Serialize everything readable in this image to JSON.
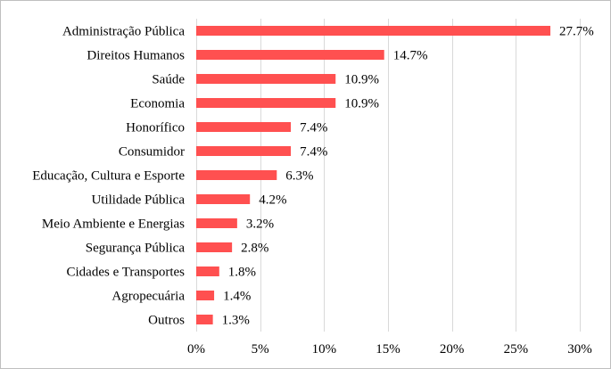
{
  "chart_data": {
    "type": "bar",
    "orientation": "horizontal",
    "categories": [
      "Administração Pública",
      "Direitos Humanos",
      "Saúde",
      "Economia",
      "Honorífico",
      "Consumidor",
      "Educação, Cultura e Esporte",
      "Utilidade Pública",
      "Meio Ambiente e Energias",
      "Segurança Pública",
      "Cidades e Transportes",
      "Agropecuária",
      "Outros"
    ],
    "values": [
      27.7,
      14.7,
      10.9,
      10.9,
      7.4,
      7.4,
      6.3,
      4.2,
      3.2,
      2.8,
      1.8,
      1.4,
      1.3
    ],
    "value_labels": [
      "27.7%",
      "14.7%",
      "10.9%",
      "10.9%",
      "7.4%",
      "7.4%",
      "6.3%",
      "4.2%",
      "3.2%",
      "2.8%",
      "1.8%",
      "1.4%",
      "1.3%"
    ],
    "xlim": [
      0,
      30
    ],
    "xticks": [
      0,
      5,
      10,
      15,
      20,
      25,
      30
    ],
    "xtick_labels": [
      "0%",
      "5%",
      "10%",
      "15%",
      "20%",
      "25%",
      "30%"
    ],
    "title": "",
    "xlabel": "",
    "ylabel": "",
    "grid": "vertical",
    "legend": "none",
    "bar_color": "#ff5050",
    "grid_color": "#d9d9d9"
  }
}
